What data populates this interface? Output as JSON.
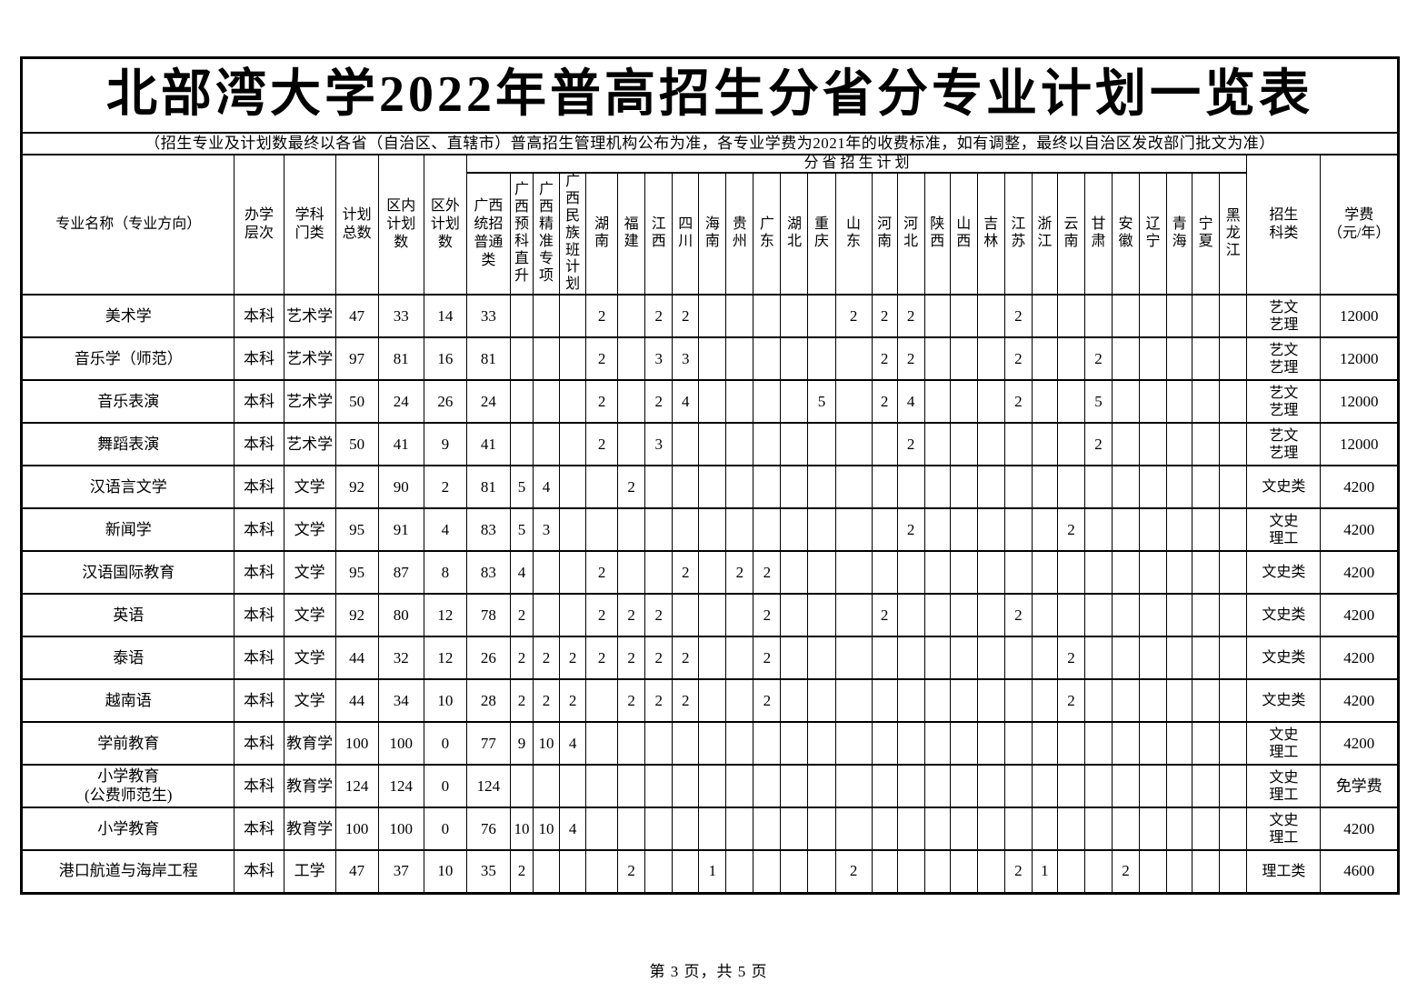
{
  "page": {
    "title": "北部湾大学2022年普高招生分省分专业计划一览表",
    "subtitle": "（招生专业及计划数最终以各省（自治区、直辖市）普高招生管理机构公布为准，各专业学费为2021年的收费标准，如有调整，最终以自治区发改部门批文为准）",
    "footer": "第 3 页，共 5 页"
  },
  "table": {
    "group_header": "分 省 招 生 计 划",
    "fixed_columns": [
      "专业名称（专业方向）",
      "办学\n层次",
      "学科\n门类",
      "计划\n总数",
      "区内\n计划\n数",
      "区外\n计划\n数"
    ],
    "gx_general_header": "广西\n统招\n普通\n类",
    "plan_columns": [
      "广西预科直升",
      "广西精准专项",
      "广西民族班计划",
      "湖南",
      "福建",
      "江西",
      "四川",
      "海南",
      "贵州",
      "广东",
      "湖北",
      "重庆",
      "山东",
      "河南",
      "河北",
      "陕西",
      "山西",
      "吉林",
      "江苏",
      "浙江",
      "云南",
      "甘肃",
      "安徽",
      "辽宁",
      "青海",
      "宁夏",
      "黑龙江"
    ],
    "category_header": "招生\n科类",
    "tuition_header": "学费\n（元/年）",
    "rows": [
      {
        "major": "美术学",
        "level": "本科",
        "discipline": "艺术学",
        "total": "47",
        "in_plan": "33",
        "out_plan": "14",
        "gx_general": "33",
        "plans": [
          "",
          "",
          "",
          "2",
          "",
          "2",
          "2",
          "",
          "",
          "",
          "",
          "",
          "2",
          "2",
          "2",
          "",
          "",
          "",
          "2",
          "",
          "",
          "",
          "",
          "",
          "",
          "",
          ""
        ],
        "category": "艺文\n艺理",
        "tuition": "12000"
      },
      {
        "major": "音乐学（师范）",
        "level": "本科",
        "discipline": "艺术学",
        "total": "97",
        "in_plan": "81",
        "out_plan": "16",
        "gx_general": "81",
        "plans": [
          "",
          "",
          "",
          "2",
          "",
          "3",
          "3",
          "",
          "",
          "",
          "",
          "",
          "",
          "2",
          "2",
          "",
          "",
          "",
          "2",
          "",
          "",
          "2",
          "",
          "",
          "",
          "",
          ""
        ],
        "category": "艺文\n艺理",
        "tuition": "12000"
      },
      {
        "major": "音乐表演",
        "level": "本科",
        "discipline": "艺术学",
        "total": "50",
        "in_plan": "24",
        "out_plan": "26",
        "gx_general": "24",
        "plans": [
          "",
          "",
          "",
          "2",
          "",
          "2",
          "4",
          "",
          "",
          "",
          "",
          "5",
          "",
          "2",
          "4",
          "",
          "",
          "",
          "2",
          "",
          "",
          "5",
          "",
          "",
          "",
          "",
          ""
        ],
        "category": "艺文\n艺理",
        "tuition": "12000"
      },
      {
        "major": "舞蹈表演",
        "level": "本科",
        "discipline": "艺术学",
        "total": "50",
        "in_plan": "41",
        "out_plan": "9",
        "gx_general": "41",
        "plans": [
          "",
          "",
          "",
          "2",
          "",
          "3",
          "",
          "",
          "",
          "",
          "",
          "",
          "",
          "",
          "2",
          "",
          "",
          "",
          "",
          "",
          "",
          "2",
          "",
          "",
          "",
          "",
          ""
        ],
        "category": "艺文\n艺理",
        "tuition": "12000"
      },
      {
        "major": "汉语言文学",
        "level": "本科",
        "discipline": "文学",
        "total": "92",
        "in_plan": "90",
        "out_plan": "2",
        "gx_general": "81",
        "plans": [
          "5",
          "4",
          "",
          "",
          "2",
          "",
          "",
          "",
          "",
          "",
          "",
          "",
          "",
          "",
          "",
          "",
          "",
          "",
          "",
          "",
          "",
          "",
          "",
          "",
          "",
          "",
          ""
        ],
        "category": "文史类",
        "tuition": "4200"
      },
      {
        "major": "新闻学",
        "level": "本科",
        "discipline": "文学",
        "total": "95",
        "in_plan": "91",
        "out_plan": "4",
        "gx_general": "83",
        "plans": [
          "5",
          "3",
          "",
          "",
          "",
          "",
          "",
          "",
          "",
          "",
          "",
          "",
          "",
          "",
          "2",
          "",
          "",
          "",
          "",
          "",
          "2",
          "",
          "",
          "",
          "",
          "",
          ""
        ],
        "category": "文史\n理工",
        "tuition": "4200"
      },
      {
        "major": "汉语国际教育",
        "level": "本科",
        "discipline": "文学",
        "total": "95",
        "in_plan": "87",
        "out_plan": "8",
        "gx_general": "83",
        "plans": [
          "4",
          "",
          "",
          "2",
          "",
          "",
          "2",
          "",
          "2",
          "2",
          "",
          "",
          "",
          "",
          "",
          "",
          "",
          "",
          "",
          "",
          "",
          "",
          "",
          "",
          "",
          "",
          ""
        ],
        "category": "文史类",
        "tuition": "4200"
      },
      {
        "major": "英语",
        "level": "本科",
        "discipline": "文学",
        "total": "92",
        "in_plan": "80",
        "out_plan": "12",
        "gx_general": "78",
        "plans": [
          "2",
          "",
          "",
          "2",
          "2",
          "2",
          "",
          "",
          "",
          "2",
          "",
          "",
          "",
          "2",
          "",
          "",
          "",
          "",
          "2",
          "",
          "",
          "",
          "",
          "",
          "",
          "",
          ""
        ],
        "category": "文史类",
        "tuition": "4200"
      },
      {
        "major": "泰语",
        "level": "本科",
        "discipline": "文学",
        "total": "44",
        "in_plan": "32",
        "out_plan": "12",
        "gx_general": "26",
        "plans": [
          "2",
          "2",
          "2",
          "2",
          "2",
          "2",
          "2",
          "",
          "",
          "2",
          "",
          "",
          "",
          "",
          "",
          "",
          "",
          "",
          "",
          "",
          "2",
          "",
          "",
          "",
          "",
          "",
          ""
        ],
        "category": "文史类",
        "tuition": "4200"
      },
      {
        "major": "越南语",
        "level": "本科",
        "discipline": "文学",
        "total": "44",
        "in_plan": "34",
        "out_plan": "10",
        "gx_general": "28",
        "plans": [
          "2",
          "2",
          "2",
          "",
          "2",
          "2",
          "2",
          "",
          "",
          "2",
          "",
          "",
          "",
          "",
          "",
          "",
          "",
          "",
          "",
          "",
          "2",
          "",
          "",
          "",
          "",
          "",
          ""
        ],
        "category": "文史类",
        "tuition": "4200"
      },
      {
        "major": "学前教育",
        "level": "本科",
        "discipline": "教育学",
        "total": "100",
        "in_plan": "100",
        "out_plan": "0",
        "gx_general": "77",
        "plans": [
          "9",
          "10",
          "4",
          "",
          "",
          "",
          "",
          "",
          "",
          "",
          "",
          "",
          "",
          "",
          "",
          "",
          "",
          "",
          "",
          "",
          "",
          "",
          "",
          "",
          "",
          "",
          ""
        ],
        "category": "文史\n理工",
        "tuition": "4200"
      },
      {
        "major": "小学教育\n(公费师范生)",
        "level": "本科",
        "discipline": "教育学",
        "total": "124",
        "in_plan": "124",
        "out_plan": "0",
        "gx_general": "124",
        "plans": [
          "",
          "",
          "",
          "",
          "",
          "",
          "",
          "",
          "",
          "",
          "",
          "",
          "",
          "",
          "",
          "",
          "",
          "",
          "",
          "",
          "",
          "",
          "",
          "",
          "",
          "",
          ""
        ],
        "category": "文史\n理工",
        "tuition": "免学费"
      },
      {
        "major": "小学教育",
        "level": "本科",
        "discipline": "教育学",
        "total": "100",
        "in_plan": "100",
        "out_plan": "0",
        "gx_general": "76",
        "plans": [
          "10",
          "10",
          "4",
          "",
          "",
          "",
          "",
          "",
          "",
          "",
          "",
          "",
          "",
          "",
          "",
          "",
          "",
          "",
          "",
          "",
          "",
          "",
          "",
          "",
          "",
          "",
          ""
        ],
        "category": "文史\n理工",
        "tuition": "4200"
      },
      {
        "major": "港口航道与海岸工程",
        "level": "本科",
        "discipline": "工学",
        "total": "47",
        "in_plan": "37",
        "out_plan": "10",
        "gx_general": "35",
        "plans": [
          "2",
          "",
          "",
          "",
          "2",
          "",
          "",
          "1",
          "",
          "",
          "",
          "",
          "2",
          "",
          "",
          "",
          "",
          "",
          "2",
          "1",
          "",
          "",
          "2",
          "",
          "",
          "",
          ""
        ],
        "category": "理工类",
        "tuition": "4600"
      }
    ]
  }
}
